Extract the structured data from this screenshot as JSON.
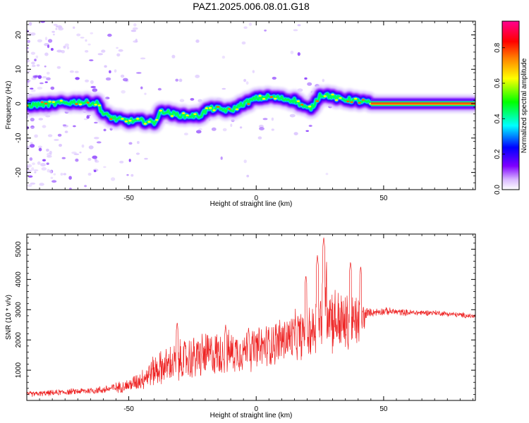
{
  "figure": {
    "title": "PAZ1.2025.006.08.01.G18"
  },
  "chart_data": [
    {
      "type": "heatmap",
      "xlabel": "Height of straight line (km)",
      "ylabel": "Frequency (Hz)",
      "xlim": [
        -90,
        86
      ],
      "ylim": [
        -25,
        24
      ],
      "xticks": [
        -50,
        0,
        50
      ],
      "yticks": [
        -20,
        -10,
        0,
        10,
        20
      ],
      "colorbar": {
        "label": "Normalized spectral amplitude",
        "range": [
          0,
          0.95
        ],
        "ticks": [
          "0.0",
          "0.2",
          "0.4",
          "0.6",
          "0.8"
        ],
        "colormap": [
          "#ffffff",
          "#7f00ff",
          "#0000ff",
          "#00ffff",
          "#00ff00",
          "#ffff00",
          "#ff8000",
          "#ff0000",
          "#ff0090"
        ]
      },
      "ridge": {
        "x": [
          -90,
          -80,
          -70,
          -62,
          -60,
          -55,
          -50,
          -45,
          -40,
          -37,
          -33,
          -28,
          -22,
          -19,
          -15,
          -10,
          -5,
          0,
          5,
          10,
          15,
          20,
          22,
          25,
          28,
          32,
          38,
          43,
          45,
          60,
          86
        ],
        "frequency": [
          -0.5,
          0,
          0.5,
          0,
          -3,
          -4.5,
          -5,
          -5,
          -5.5,
          -2,
          -3,
          -3.5,
          -3.5,
          -1.5,
          -1.5,
          -2,
          0,
          1.5,
          2,
          1.5,
          1,
          -1.5,
          -1,
          2.5,
          2.5,
          1.5,
          1,
          0.5,
          0,
          0,
          0
        ]
      }
    },
    {
      "type": "line",
      "xlabel": "Height of straight line (km)",
      "ylabel": "SNR (10 * v/v)",
      "xlim": [
        -90,
        86
      ],
      "ylim": [
        0,
        5500
      ],
      "xticks": [
        -50,
        0,
        50
      ],
      "yticks": [
        1000,
        2000,
        3000,
        4000,
        5000
      ],
      "series": [
        {
          "color": "#ee2222",
          "envelope_x": [
            -90,
            -70,
            -60,
            -50,
            -45,
            -40,
            -30,
            -20,
            -10,
            0,
            10,
            20,
            25,
            27,
            30,
            35,
            40,
            44,
            50,
            60,
            70,
            86
          ],
          "envelope_mid": [
            200,
            300,
            350,
            500,
            700,
            1000,
            1300,
            1500,
            1600,
            1700,
            2000,
            2200,
            2600,
            3500,
            2700,
            2500,
            2600,
            2900,
            2950,
            2900,
            2900,
            2780
          ],
          "envelope_amp": [
            100,
            120,
            150,
            250,
            400,
            600,
            800,
            900,
            800,
            800,
            900,
            1000,
            1300,
            1800,
            1300,
            1200,
            1100,
            150,
            150,
            120,
            100,
            100
          ],
          "peaks": [
            [
              26.5,
              5400
            ],
            [
              24,
              4800
            ],
            [
              37,
              4600
            ],
            [
              41,
              4450
            ],
            [
              19.5,
              4150
            ],
            [
              -31,
              2600
            ],
            [
              -3,
              2400
            ],
            [
              -12,
              2500
            ]
          ]
        }
      ]
    }
  ]
}
